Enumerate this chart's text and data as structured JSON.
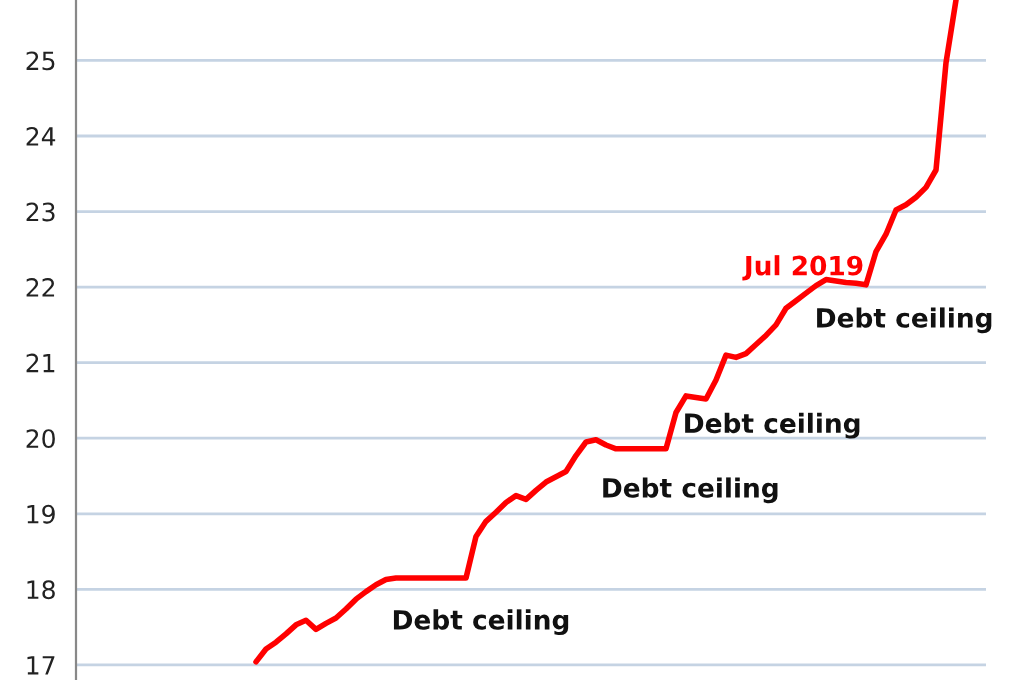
{
  "chart_data": {
    "type": "line",
    "tick_labels": "y",
    "grid": "y",
    "ylim": [
      16.8,
      25.8
    ],
    "yticks": [
      17,
      18,
      19,
      20,
      21,
      22,
      23,
      24,
      25
    ],
    "categories": [
      null,
      null,
      null,
      null,
      null,
      null,
      null,
      null,
      null,
      null,
      null,
      null,
      null,
      null,
      null,
      null,
      null,
      null,
      null,
      null,
      null,
      null,
      null,
      null,
      null,
      null,
      null,
      null,
      null,
      null,
      null,
      null,
      null,
      null,
      null,
      null,
      null,
      null,
      null,
      null,
      null,
      null,
      null,
      null,
      null,
      null,
      null,
      null,
      null,
      null,
      null,
      null,
      null,
      null,
      null,
      null,
      null,
      null,
      null,
      null,
      null,
      null,
      null,
      null,
      null,
      null,
      null,
      null,
      null,
      null,
      null,
      null,
      null,
      null,
      null,
      null,
      null,
      null,
      null,
      null,
      null,
      null,
      null,
      null,
      null,
      null,
      null,
      null,
      null,
      null,
      null,
      null
    ],
    "series": [
      {
        "color": "#ff0000",
        "values": [
          null,
          null,
          null,
          null,
          null,
          null,
          null,
          null,
          null,
          null,
          null,
          null,
          null,
          null,
          null,
          null,
          null,
          null,
          17.04,
          17.21,
          17.3,
          17.41,
          17.53,
          17.59,
          17.47,
          17.55,
          17.62,
          17.74,
          17.87,
          17.97,
          18.06,
          18.13,
          18.15,
          18.15,
          18.15,
          18.15,
          18.15,
          18.15,
          18.15,
          18.15,
          18.7,
          18.9,
          19.02,
          19.15,
          19.24,
          19.19,
          19.31,
          19.42,
          19.49,
          19.56,
          19.77,
          19.95,
          19.98,
          19.91,
          19.86,
          19.86,
          19.86,
          19.86,
          19.86,
          19.86,
          20.34,
          20.56,
          20.54,
          20.52,
          20.77,
          21.1,
          21.07,
          21.12,
          21.24,
          21.36,
          21.5,
          21.72,
          21.82,
          21.92,
          22.02,
          22.1,
          22.08,
          22.06,
          22.05,
          22.03,
          22.47,
          22.7,
          23.02,
          23.09,
          23.19,
          23.32,
          23.55,
          24.97,
          25.8,
          null,
          null,
          null
        ]
      }
    ],
    "annotations": [
      "Jul 2019",
      "Debt ceiling",
      "Debt ceiling",
      "Debt ceiling",
      "Debt ceiling"
    ]
  }
}
